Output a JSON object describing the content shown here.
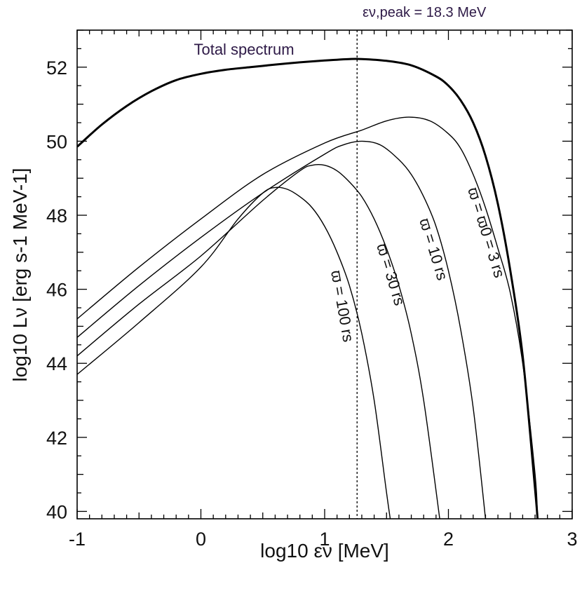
{
  "chart_data": {
    "type": "line",
    "title": "",
    "xlabel": "log10 εν [MeV]",
    "ylabel": "log10 Lν [erg s-1 MeV-1]",
    "xlim": [
      -1,
      3
    ],
    "ylim": [
      39.8,
      53
    ],
    "xticks": [
      -1,
      0,
      1,
      2,
      3
    ],
    "yticks": [
      40,
      42,
      44,
      46,
      48,
      50,
      52
    ],
    "xtick_labels": [
      "-1",
      "0",
      "1",
      "2",
      "3"
    ],
    "ytick_labels": [
      "40",
      "42",
      "44",
      "46",
      "48",
      "50",
      "52"
    ],
    "peak_line": {
      "x": 1.262,
      "label": "εν,peak = 18.3 MeV"
    },
    "annotations": {
      "total": "Total spectrum"
    },
    "series": [
      {
        "name": "Total spectrum",
        "label": "Total spectrum",
        "x": [
          -1,
          -0.8,
          -0.6,
          -0.4,
          -0.2,
          0,
          0.2,
          0.4,
          0.6,
          0.8,
          1.0,
          1.2,
          1.3,
          1.5,
          1.7,
          1.9,
          2.0,
          2.1,
          2.2,
          2.3,
          2.4,
          2.5,
          2.6,
          2.7,
          2.72
        ],
        "y": [
          49.85,
          50.45,
          50.95,
          51.35,
          51.65,
          51.82,
          51.93,
          52.0,
          52.07,
          52.13,
          52.18,
          52.22,
          52.22,
          52.17,
          52.05,
          51.75,
          51.5,
          51.1,
          50.5,
          49.6,
          48.3,
          46.5,
          44.2,
          40.6,
          39.8
        ]
      },
      {
        "name": "ϖ = ϖ0 = 3 rs",
        "label": "ϖ = ϖ0 = 3 rs",
        "x": [
          -1,
          -0.5,
          0,
          0.5,
          1.0,
          1.3,
          1.5,
          1.68,
          1.85,
          2.0,
          2.1,
          2.2,
          2.3,
          2.4,
          2.5,
          2.6,
          2.7,
          2.72
        ],
        "y": [
          45.2,
          46.6,
          47.9,
          49.1,
          49.95,
          50.3,
          50.55,
          50.65,
          50.55,
          50.2,
          49.8,
          49.1,
          48.2,
          47.1,
          45.9,
          44.0,
          41.0,
          39.8
        ]
      },
      {
        "name": "ϖ = 10 rs",
        "label": "ϖ = 10 rs",
        "x": [
          -1,
          -0.5,
          0,
          0.5,
          1.0,
          1.15,
          1.3,
          1.45,
          1.6,
          1.7,
          1.8,
          1.9,
          2.0,
          2.1,
          2.2,
          2.3
        ],
        "y": [
          44.7,
          46.1,
          47.4,
          48.6,
          49.65,
          49.9,
          50.0,
          49.9,
          49.5,
          49.1,
          48.5,
          47.7,
          46.5,
          44.9,
          42.8,
          39.8
        ]
      },
      {
        "name": "ϖ = 30 rs",
        "label": "ϖ = 30 rs",
        "x": [
          -1,
          -0.5,
          0,
          0.5,
          0.8,
          0.9,
          1.0,
          1.1,
          1.2,
          1.3,
          1.4,
          1.5,
          1.6,
          1.7,
          1.8,
          1.93
        ],
        "y": [
          44.2,
          45.6,
          46.9,
          48.4,
          49.2,
          49.35,
          49.35,
          49.2,
          48.9,
          48.5,
          47.9,
          47.1,
          46.1,
          44.8,
          43.0,
          39.8
        ]
      },
      {
        "name": "ϖ = 100 rs",
        "label": "ϖ = 100 rs",
        "x": [
          -1,
          -0.5,
          0,
          0.3,
          0.5,
          0.6,
          0.7,
          0.8,
          0.9,
          1.0,
          1.1,
          1.2,
          1.3,
          1.4,
          1.5,
          1.53
        ],
        "y": [
          43.7,
          45.1,
          46.6,
          47.9,
          48.6,
          48.75,
          48.7,
          48.5,
          48.2,
          47.7,
          47.0,
          46.1,
          44.8,
          43.0,
          40.5,
          39.8
        ]
      }
    ]
  }
}
